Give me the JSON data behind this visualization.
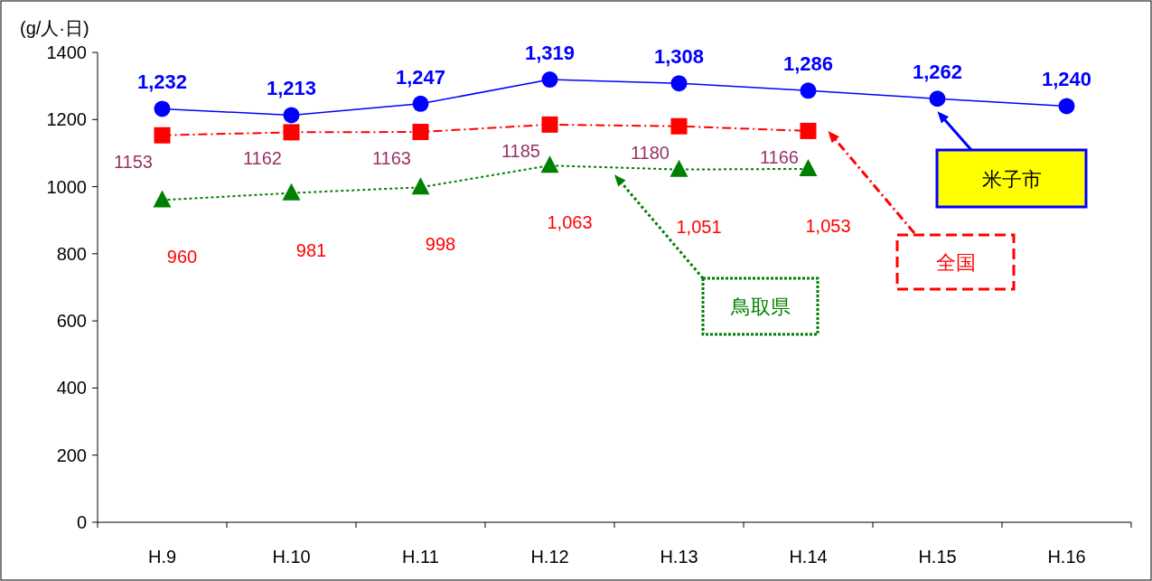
{
  "chart_data": {
    "type": "line",
    "ylabel": "(g/人·日)",
    "categories": [
      "H.9",
      "H.10",
      "H.11",
      "H.12",
      "H.13",
      "H.14",
      "H.15",
      "H.16"
    ],
    "ylim": [
      0,
      1400
    ],
    "yticks": [
      0,
      200,
      400,
      600,
      800,
      1000,
      1200,
      1400
    ],
    "grid": false,
    "series": [
      {
        "name": "米子市",
        "color": "#0000ff",
        "marker": "circle",
        "line_style": "solid",
        "values": [
          1232,
          1213,
          1247,
          1319,
          1308,
          1286,
          1262,
          1240
        ],
        "value_labels": [
          "1,232",
          "1,213",
          "1,247",
          "1,319",
          "1,308",
          "1,286",
          "1,262",
          "1,240"
        ]
      },
      {
        "name": "全国",
        "color": "#ff0000",
        "marker": "square",
        "line_style": "dashed",
        "values": [
          1153,
          1162,
          1163,
          1185,
          1180,
          1166,
          null,
          null
        ],
        "value_labels": [
          "1153",
          "1162",
          "1163",
          "1185",
          "1180",
          "1166",
          null,
          null
        ]
      },
      {
        "name": "鳥取県",
        "color": "#008000",
        "marker": "triangle",
        "line_style": "dotted",
        "values": [
          960,
          981,
          998,
          1063,
          1051,
          1053,
          null,
          null
        ],
        "value_labels": [
          "960",
          "981",
          "998",
          "1,063",
          "1,051",
          "1,053",
          null,
          null
        ]
      }
    ]
  }
}
